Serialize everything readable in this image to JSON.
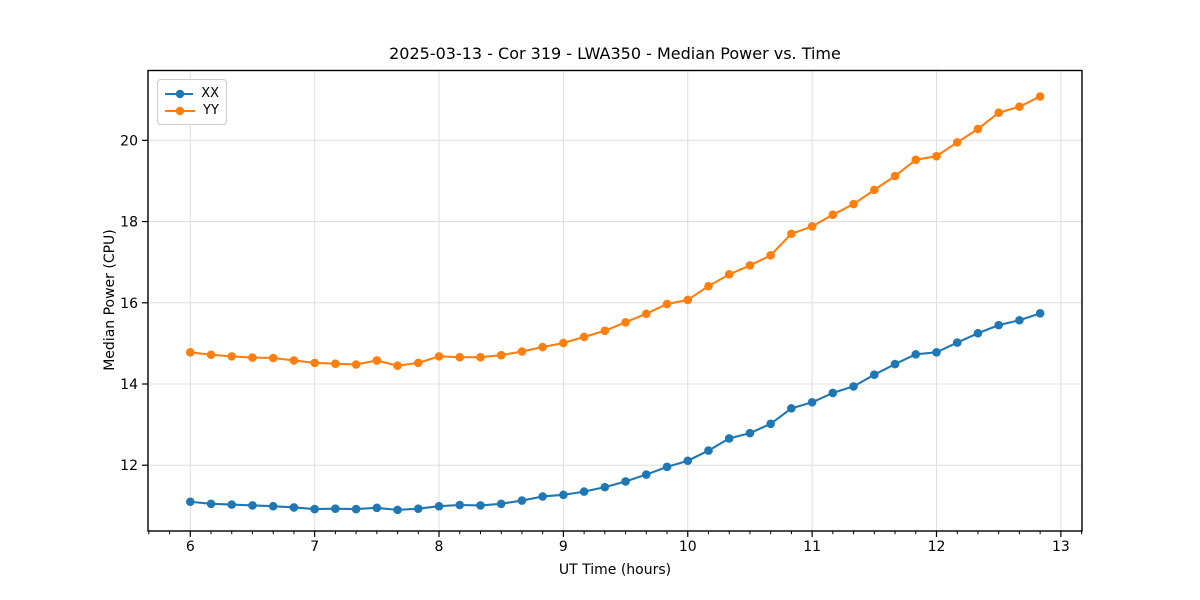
{
  "title": "2025-03-13 - Cor 319 - LWA350 - Median Power vs. Time",
  "colors": {
    "series_xx": "#1f77b4",
    "series_yy": "#ff7f0e",
    "grid": "#e0e0e0",
    "spine": "#000000",
    "tick": "#000000",
    "text": "#000000",
    "legend_border": "#cccccc",
    "background": "#ffffff"
  },
  "chart_data": {
    "type": "line",
    "title": "2025-03-13 - Cor 319 - LWA350 - Median Power vs. Time",
    "xlabel": "UT Time (hours)",
    "ylabel": "Median Power (CPU)",
    "xlim": [
      5.66,
      13.17
    ],
    "ylim": [
      10.38,
      21.72
    ],
    "x_major_ticks": [
      6,
      7,
      8,
      9,
      10,
      11,
      12,
      13
    ],
    "x_minor_step": 0.166667,
    "y_major_ticks": [
      12,
      14,
      16,
      18,
      20
    ],
    "grid": true,
    "legend_position": "upper left",
    "marker": "o",
    "x": [
      6.0,
      6.1667,
      6.3333,
      6.5,
      6.6667,
      6.8333,
      7.0,
      7.1667,
      7.3333,
      7.5,
      7.6667,
      7.8333,
      8.0,
      8.1667,
      8.3333,
      8.5,
      8.6667,
      8.8333,
      9.0,
      9.1667,
      9.3333,
      9.5,
      9.6667,
      9.8333,
      10.0,
      10.1667,
      10.3333,
      10.5,
      10.6667,
      10.8333,
      11.0,
      11.1667,
      11.3333,
      11.5,
      11.6667,
      11.8333,
      12.0,
      12.1667,
      12.3333,
      12.5,
      12.6667,
      12.8333
    ],
    "series": [
      {
        "name": "XX",
        "color": "#1f77b4",
        "values": [
          11.1,
          11.05,
          11.03,
          11.01,
          10.99,
          10.96,
          10.92,
          10.93,
          10.92,
          10.95,
          10.9,
          10.93,
          10.99,
          11.02,
          11.01,
          11.05,
          11.13,
          11.23,
          11.27,
          11.35,
          11.46,
          11.6,
          11.77,
          11.96,
          12.11,
          12.36,
          12.66,
          12.79,
          13.02,
          13.4,
          13.55,
          13.78,
          13.94,
          14.23,
          14.49,
          14.73,
          14.78,
          15.02,
          15.25,
          15.45,
          15.57,
          15.74
        ]
      },
      {
        "name": "YY",
        "color": "#ff7f0e",
        "values": [
          14.78,
          14.72,
          14.68,
          14.65,
          14.64,
          14.58,
          14.52,
          14.5,
          14.48,
          14.58,
          14.45,
          14.52,
          14.68,
          14.66,
          14.66,
          14.71,
          14.8,
          14.91,
          15.01,
          15.16,
          15.31,
          15.52,
          15.73,
          15.97,
          16.07,
          16.41,
          16.7,
          16.92,
          17.17,
          17.7,
          17.88,
          18.17,
          18.43,
          18.78,
          19.12,
          19.52,
          19.61,
          19.95,
          20.28,
          20.68,
          20.83,
          21.08
        ]
      }
    ]
  }
}
